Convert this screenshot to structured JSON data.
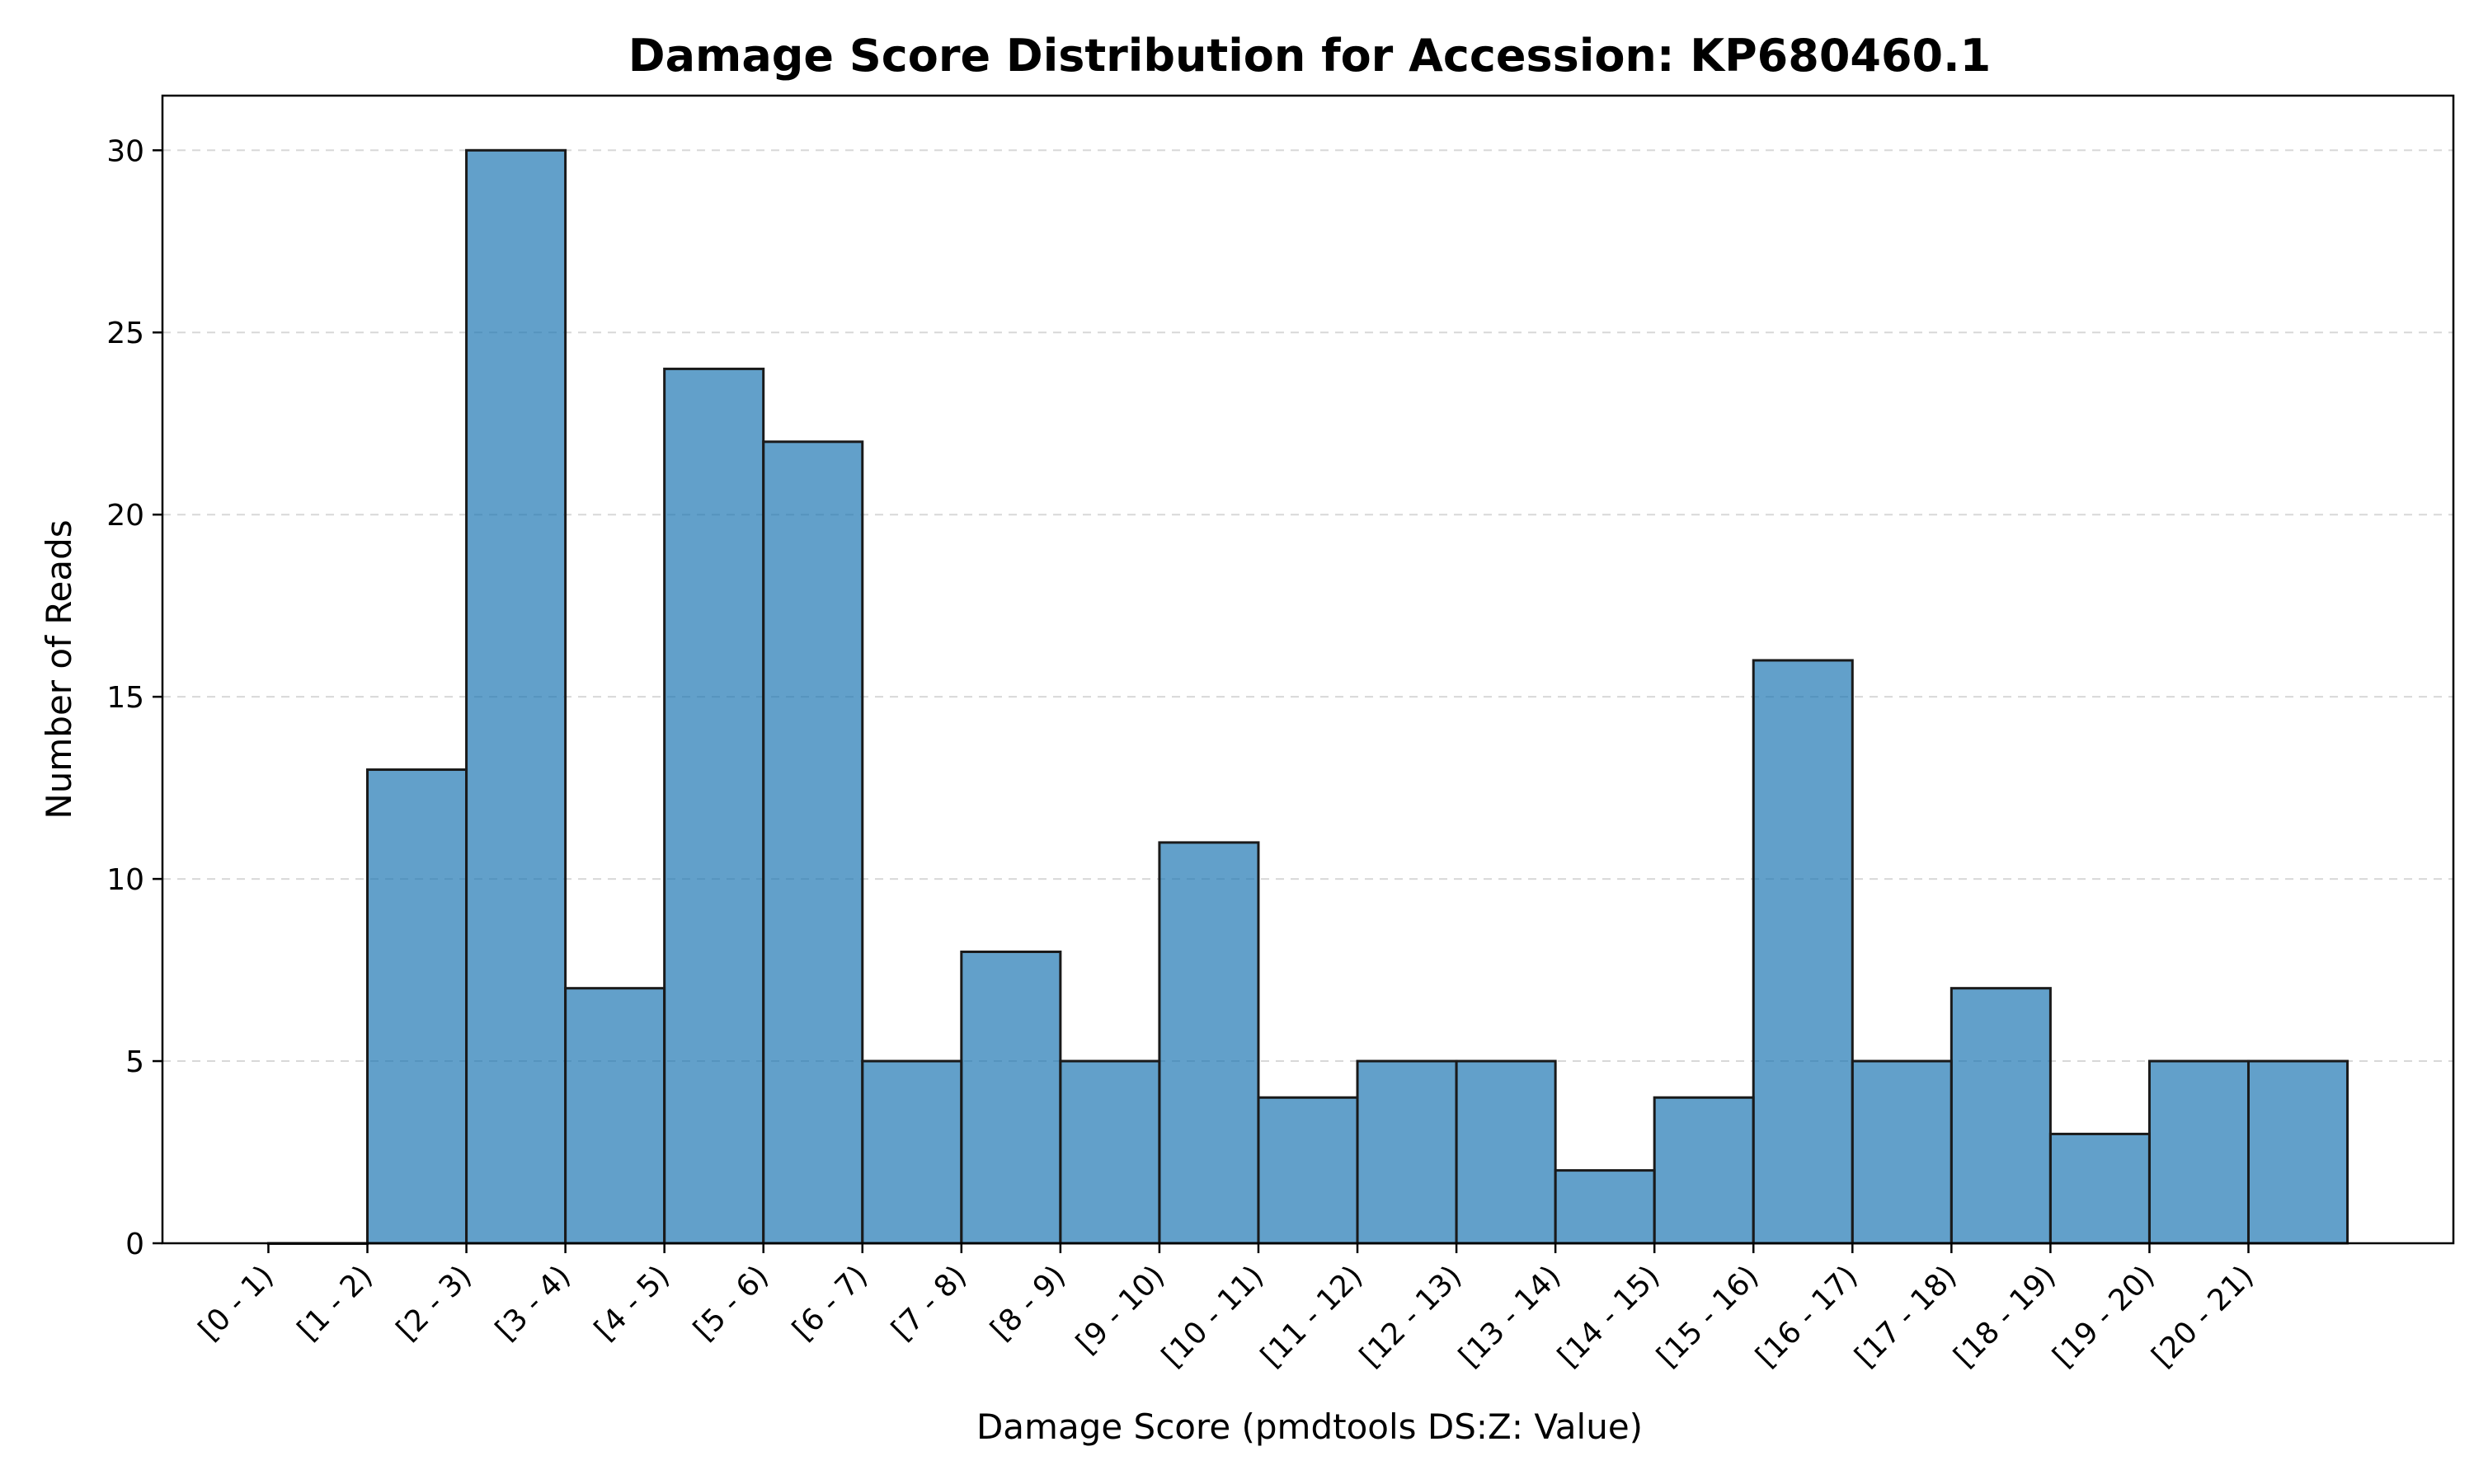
{
  "chart_data": {
    "type": "bar",
    "title": "Damage Score Distribution for Accession: KP680460.1",
    "xlabel": "Damage Score (pmdtools DS:Z: Value)",
    "ylabel": "Number of Reads",
    "categories": [
      "[0 - 1)",
      "[1 - 2)",
      "[2 - 3)",
      "[3 - 4)",
      "[4 - 5)",
      "[5 - 6)",
      "[6 - 7)",
      "[7 - 8)",
      "[8 - 9)",
      "[9 - 10)",
      "[10 - 11)",
      "[11 - 12)",
      "[12 - 13)",
      "[13 - 14)",
      "[14 - 15)",
      "[15 - 16)",
      "[16 - 17)",
      "[17 - 18)",
      "[18 - 19)",
      "[19 - 20)",
      "[20 - 21)"
    ],
    "values": [
      0,
      13,
      30,
      7,
      24,
      22,
      5,
      8,
      5,
      11,
      4,
      5,
      5,
      2,
      4,
      16,
      5,
      7,
      3,
      5,
      5
    ],
    "yticks": [
      0,
      5,
      10,
      15,
      20,
      25,
      30
    ],
    "ylim": [
      0,
      31.5
    ],
    "grid": "y-dashed",
    "bar_color": "#1f77b4",
    "bar_edge_color": "#1a1a1a"
  }
}
